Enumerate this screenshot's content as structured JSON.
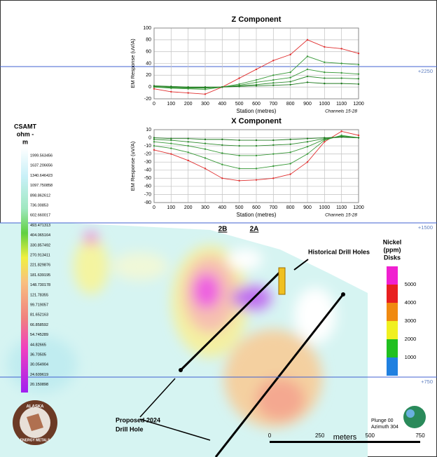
{
  "chart_data": [
    {
      "type": "line",
      "title": "Z Component",
      "x_label": "Station (metres)",
      "y_label": "EM Response (uV/A)",
      "note": "Channels 15-28",
      "x": [
        0,
        100,
        200,
        300,
        400,
        500,
        600,
        700,
        800,
        900,
        1000,
        1100,
        1200
      ],
      "xlim": [
        0,
        1200
      ],
      "xticks": [
        0,
        100,
        200,
        300,
        400,
        500,
        600,
        700,
        800,
        900,
        1000,
        1100,
        1200
      ],
      "ylim": [
        -20,
        100
      ],
      "yticks": [
        -20,
        0,
        20,
        40,
        60,
        80,
        100
      ],
      "grid": true,
      "series": [
        {
          "color": "#e03030",
          "values": [
            -3,
            -8,
            -10,
            -12,
            0,
            15,
            30,
            45,
            55,
            80,
            68,
            65,
            57
          ]
        },
        {
          "color": "#3a9a3a",
          "values": [
            0,
            -2,
            -3,
            -4,
            0,
            5,
            12,
            20,
            25,
            52,
            42,
            40,
            38
          ]
        },
        {
          "color": "#3a9a3a",
          "values": [
            0,
            -1,
            -2,
            -2,
            0,
            3,
            8,
            12,
            16,
            30,
            25,
            24,
            22
          ]
        },
        {
          "color": "#2e8b2e",
          "values": [
            1,
            0,
            -1,
            -1,
            0,
            2,
            4,
            7,
            9,
            18,
            15,
            15,
            14
          ]
        },
        {
          "color": "#1f7a1f",
          "values": [
            2,
            1,
            0,
            0,
            0,
            1,
            2,
            3,
            4,
            8,
            6,
            6,
            5
          ]
        }
      ]
    },
    {
      "type": "line",
      "title": "X Component",
      "x_label": "Station (metres)",
      "y_label": "EM Response (uV/A)",
      "note": "Channels 15-28",
      "x": [
        0,
        100,
        200,
        300,
        400,
        500,
        600,
        700,
        800,
        900,
        1000,
        1100,
        1200
      ],
      "xlim": [
        0,
        1200
      ],
      "xticks": [
        0,
        100,
        200,
        300,
        400,
        500,
        600,
        700,
        800,
        900,
        1000,
        1100,
        1200
      ],
      "ylim": [
        -80,
        10
      ],
      "yticks": [
        -80,
        -70,
        -60,
        -50,
        -40,
        -30,
        -20,
        -10,
        0,
        10
      ],
      "grid": true,
      "series": [
        {
          "color": "#e03030",
          "values": [
            -15,
            -20,
            -28,
            -38,
            -50,
            -53,
            -52,
            -50,
            -45,
            -30,
            -5,
            8,
            3
          ]
        },
        {
          "color": "#3a9a3a",
          "values": [
            -10,
            -13,
            -18,
            -25,
            -33,
            -38,
            -38,
            -35,
            -32,
            -20,
            -3,
            3,
            0
          ]
        },
        {
          "color": "#3a9a3a",
          "values": [
            -5,
            -7,
            -10,
            -14,
            -19,
            -22,
            -22,
            -20,
            -18,
            -11,
            -2,
            2,
            0
          ]
        },
        {
          "color": "#2e8b2e",
          "values": [
            -2,
            -3,
            -5,
            -7,
            -9,
            -10,
            -10,
            -9,
            -8,
            -5,
            -1,
            1,
            0
          ]
        },
        {
          "color": "#1f7a1f",
          "values": [
            0,
            -1,
            -1,
            -2,
            -2,
            -3,
            -3,
            -3,
            -2,
            -1,
            0,
            1,
            0
          ]
        }
      ]
    }
  ],
  "resistivity_scale": {
    "title": [
      "CSAMT",
      "ohm -",
      "m"
    ],
    "labels": [
      1999.563456,
      1637.206656,
      1340.646423,
      1097.750858,
      898.862612,
      736.00853,
      602.660017,
      493.471313,
      404.065164,
      330.857492,
      270.913411,
      221.829876,
      181.639195,
      148.730178,
      121.78355,
      99.719057,
      81.652163,
      66.858592,
      54.745289,
      44.82665,
      36.70505,
      30.054904,
      24.609619,
      20.150898
    ]
  },
  "section": {
    "lines": [
      "2B",
      "2A"
    ],
    "elevations": [
      "+2250",
      "+1500",
      "+750"
    ],
    "historical": "Historical Drill Holes",
    "proposed": [
      "Proposed 2024",
      "Drill Hole"
    ],
    "orientation": [
      "Plunge 00",
      "Azimuth 304"
    ]
  },
  "nickel_legend": {
    "title": [
      "Nickel",
      "(ppm)",
      "Disks"
    ],
    "items": [
      {
        "value": 5000,
        "color": "#f020d0"
      },
      {
        "value": 4000,
        "color": "#e82020"
      },
      {
        "value": 3000,
        "color": "#f08a10"
      },
      {
        "value": 2000,
        "color": "#f0f020"
      },
      {
        "value": 1000,
        "color": "#20c020"
      }
    ],
    "bottom_color": "#2080e0"
  },
  "scale_bar": {
    "ticks": [
      0,
      250,
      500,
      750
    ],
    "max": 750,
    "unit": "meters"
  },
  "logo": {
    "lines": [
      "ALASKA",
      "ENERGY METALS"
    ]
  }
}
